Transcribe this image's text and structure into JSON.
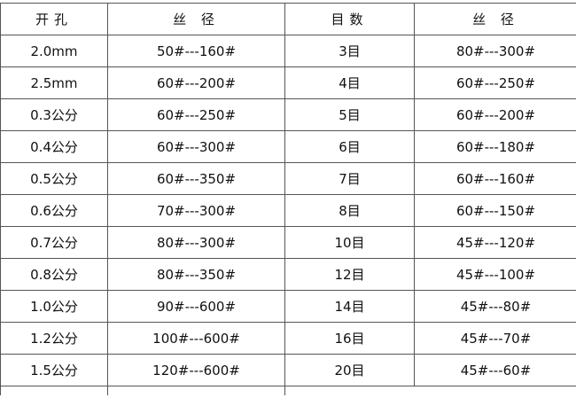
{
  "headers": [
    "开孔",
    "丝 径",
    "目数",
    "丝 径"
  ],
  "rows": [
    [
      "2.0mm",
      "50#---160#",
      "3目",
      "80#---300#"
    ],
    [
      "2.5mm",
      "60#---200#",
      "4目",
      "60#---250#"
    ],
    [
      "0.3公分",
      "60#---250#",
      "5目",
      "60#---200#"
    ],
    [
      "0.4公分",
      "60#---300#",
      "6目",
      "60#---180#"
    ],
    [
      "0.5公分",
      "60#---350#",
      "7目",
      "60#---160#"
    ],
    [
      "0.6公分",
      "70#---300#",
      "8目",
      "60#---150#"
    ],
    [
      "0.7公分",
      "80#---300#",
      "10目",
      "45#---120#"
    ],
    [
      "0.8公分",
      "80#---350#",
      "12目",
      "45#---100#"
    ],
    [
      "1.0公分",
      "90#---600#",
      "14目",
      "45#---80#"
    ],
    [
      "1.2公分",
      "100#---600#",
      "16目",
      "45#---70#"
    ],
    [
      "1.5公分",
      "120#---600#",
      "20目",
      "45#---60#"
    ]
  ]
}
